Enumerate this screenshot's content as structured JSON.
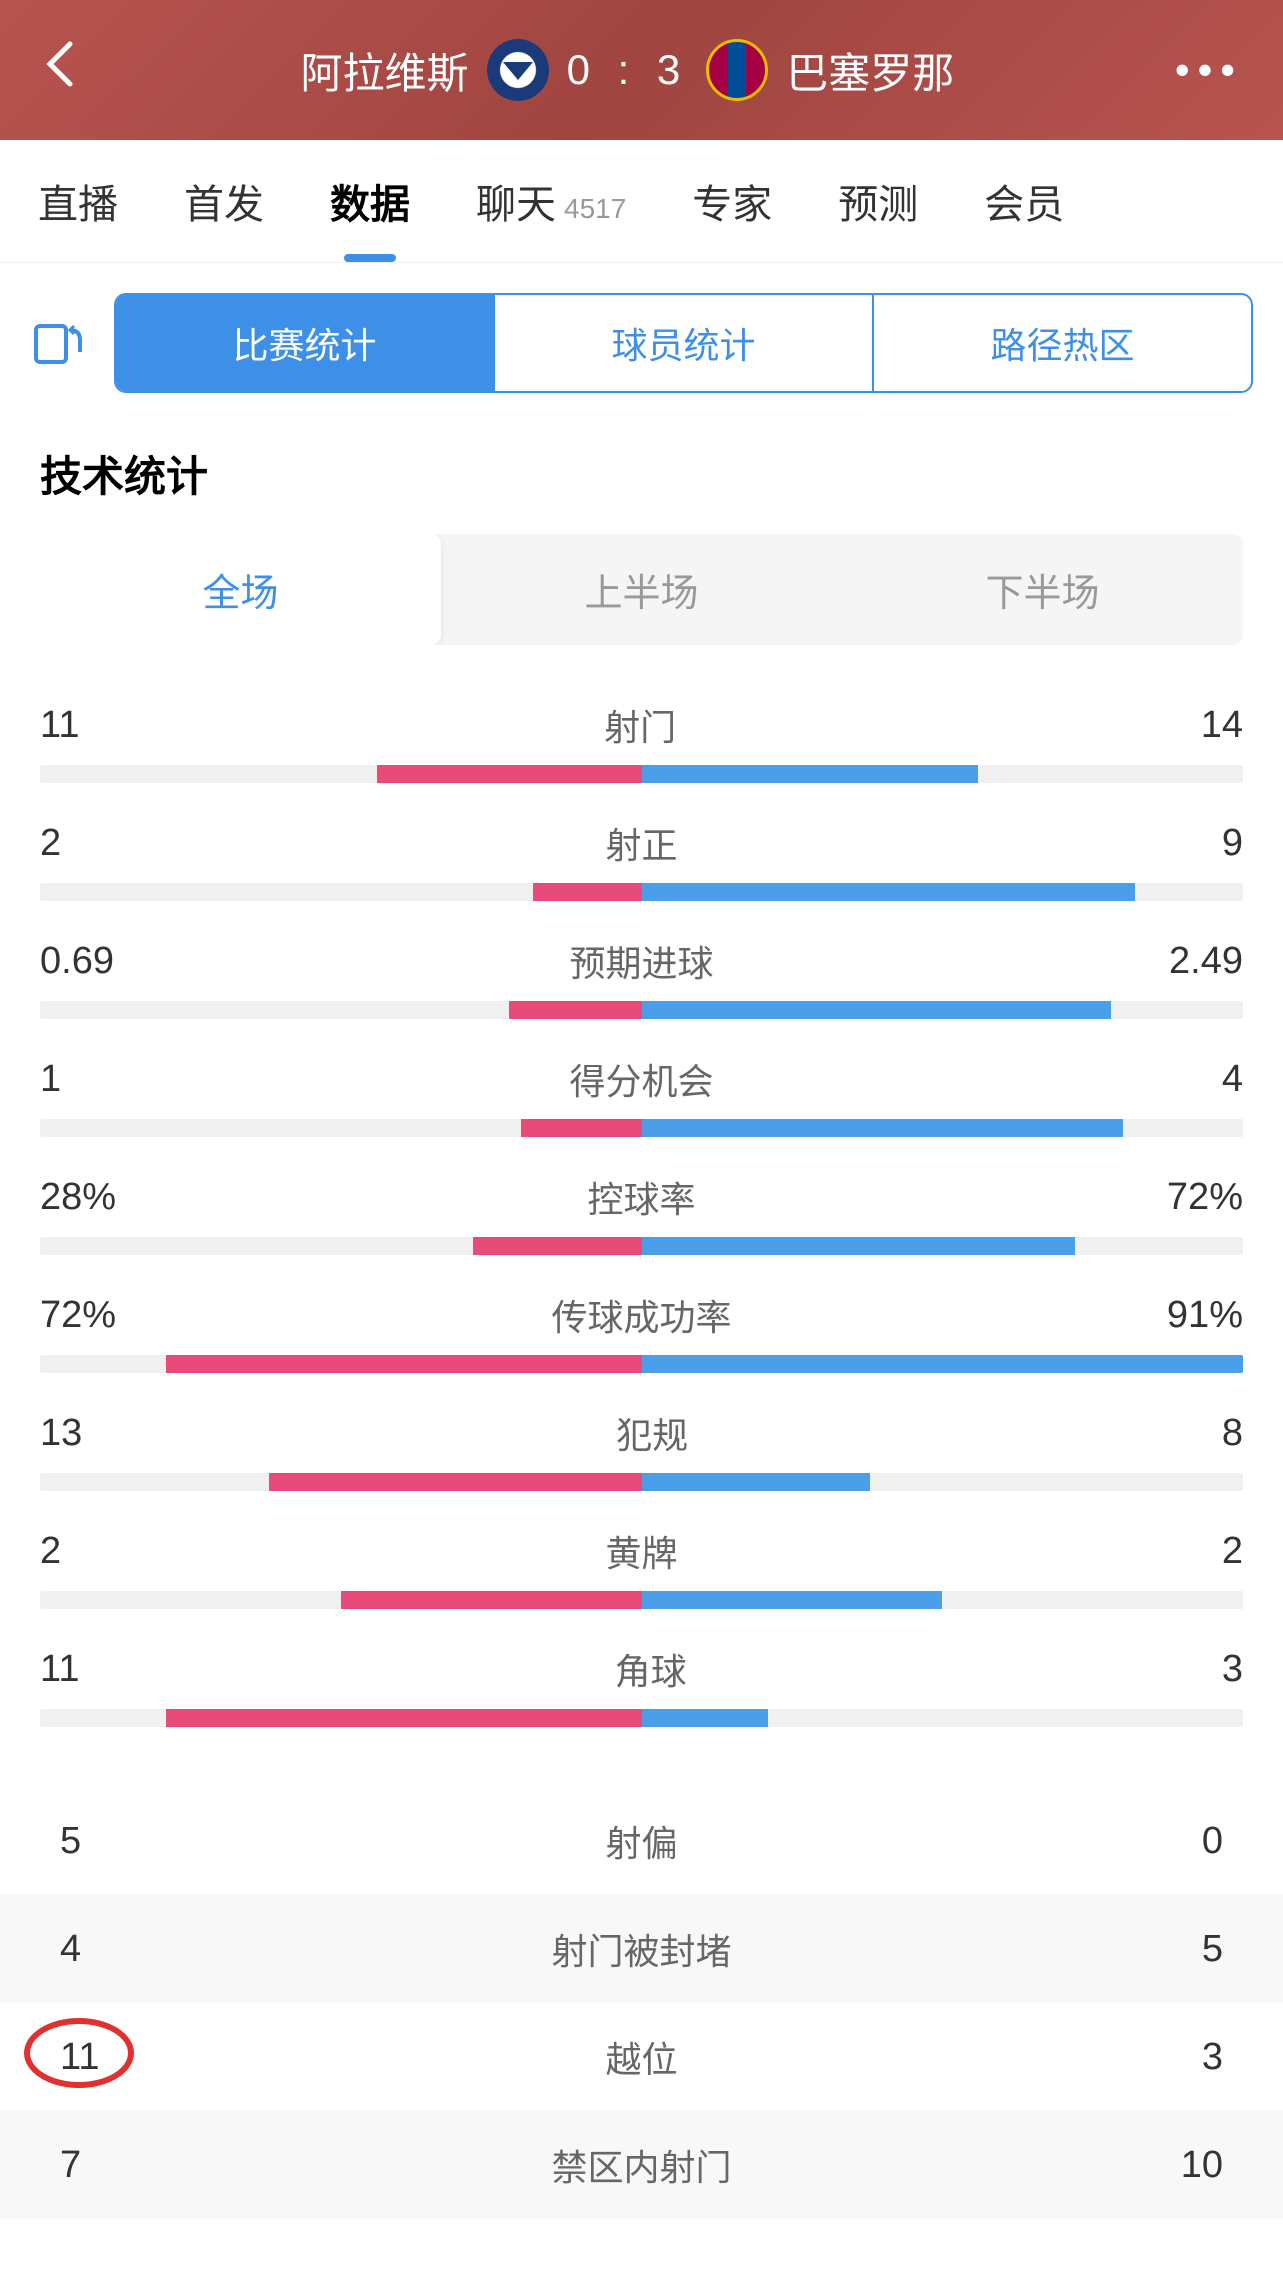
{
  "header": {
    "home_team": "阿拉维斯",
    "away_team": "巴塞罗那",
    "score": "0 : 3"
  },
  "nav_tabs": [
    {
      "label": "直播",
      "active": false
    },
    {
      "label": "首发",
      "active": false
    },
    {
      "label": "数据",
      "active": true
    },
    {
      "label": "聊天",
      "count": "4517",
      "active": false
    },
    {
      "label": "专家",
      "active": false
    },
    {
      "label": "预测",
      "active": false
    },
    {
      "label": "会员",
      "active": false
    }
  ],
  "segments": [
    {
      "label": "比赛统计",
      "active": true
    },
    {
      "label": "球员统计",
      "active": false
    },
    {
      "label": "路径热区",
      "active": false
    }
  ],
  "section_title": "技术统计",
  "periods": [
    {
      "label": "全场",
      "active": true
    },
    {
      "label": "上半场",
      "active": false
    },
    {
      "label": "下半场",
      "active": false
    }
  ],
  "colors": {
    "home_bar": "#e84a7a",
    "away_bar": "#4a9fe8",
    "bar_bg": "#f0f0f0"
  },
  "bar_stats": [
    {
      "name": "射门",
      "home": "11",
      "away": "14",
      "home_pct": 44,
      "away_pct": 56
    },
    {
      "name": "射正",
      "home": "2",
      "away": "9",
      "home_pct": 18,
      "away_pct": 82
    },
    {
      "name": "预期进球",
      "home": "0.69",
      "away": "2.49",
      "home_pct": 22,
      "away_pct": 78
    },
    {
      "name": "得分机会",
      "home": "1",
      "away": "4",
      "home_pct": 20,
      "away_pct": 80
    },
    {
      "name": "控球率",
      "home": "28%",
      "away": "72%",
      "home_pct": 28,
      "away_pct": 72
    },
    {
      "name": "传球成功率",
      "home": "72%",
      "away": "91%",
      "home_pct": 79,
      "away_pct": 100
    },
    {
      "name": "犯规",
      "home": "13",
      "away": "8",
      "home_pct": 62,
      "away_pct": 38
    },
    {
      "name": "黄牌",
      "home": "2",
      "away": "2",
      "home_pct": 50,
      "away_pct": 50
    },
    {
      "name": "角球",
      "home": "11",
      "away": "3",
      "home_pct": 79,
      "away_pct": 21
    }
  ],
  "simple_stats": [
    {
      "name": "射偏",
      "home": "5",
      "away": "0",
      "highlighted": false
    },
    {
      "name": "射门被封堵",
      "home": "4",
      "away": "5",
      "highlighted": false
    },
    {
      "name": "越位",
      "home": "11",
      "away": "3",
      "highlighted": true
    },
    {
      "name": "禁区内射门",
      "home": "7",
      "away": "10",
      "highlighted": false
    }
  ]
}
